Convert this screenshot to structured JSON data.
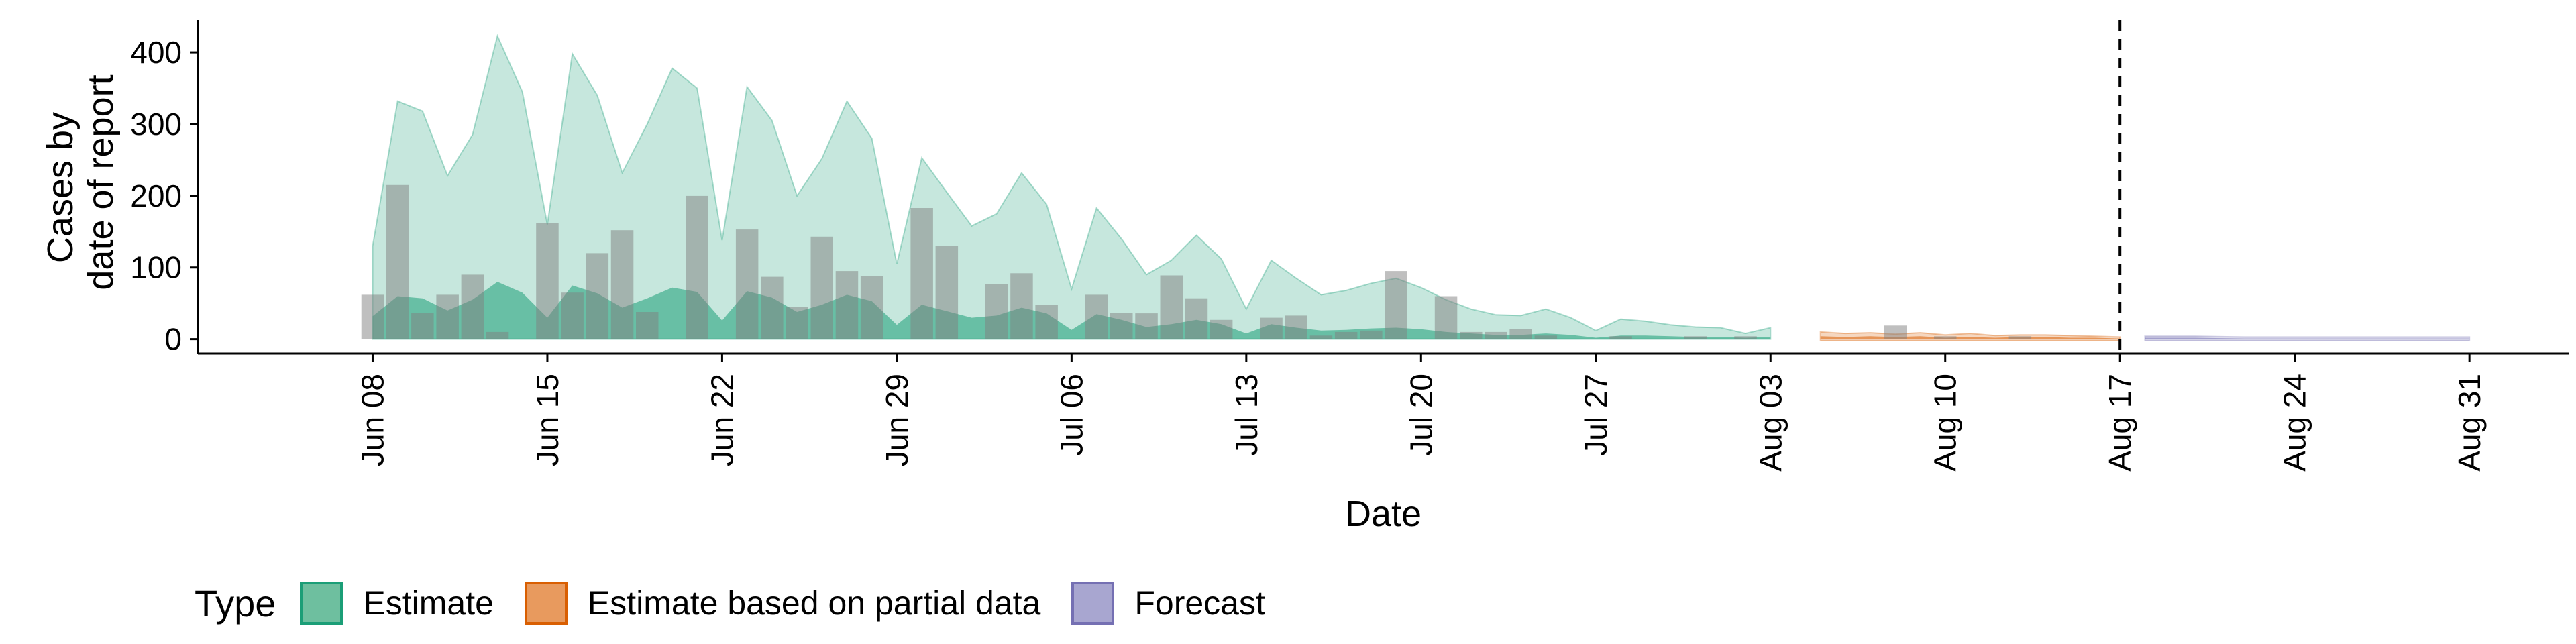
{
  "chart_data": {
    "type": "area",
    "xlabel": "Date",
    "ylabel_lines": [
      "Cases by",
      "date of report"
    ],
    "x_ticks": [
      "Jun 08",
      "Jun 15",
      "Jun 22",
      "Jun 29",
      "Jul 06",
      "Jul 13",
      "Jul 20",
      "Jul 27",
      "Aug 03",
      "Aug 10",
      "Aug 17",
      "Aug 24",
      "Aug 31"
    ],
    "y_ticks": [
      0,
      100,
      200,
      300,
      400
    ],
    "ylim": [
      -20,
      445
    ],
    "x_start": "2020-06-01",
    "x_end": "2020-09-04",
    "vline_date": "2020-08-17",
    "grid": false,
    "legend_position": "bottom",
    "legend": {
      "title": "Type",
      "items": [
        {
          "label": "Estimate",
          "fill": "#6ebf9f",
          "stroke": "#1b9e77"
        },
        {
          "label": "Estimate based on partial data",
          "fill": "#e89a5e",
          "stroke": "#d95f02"
        },
        {
          "label": "Forecast",
          "fill": "#a8a6d0",
          "stroke": "#7570b3"
        }
      ]
    },
    "colors": {
      "estimate_fill": "#1b9e77",
      "partial_fill": "#d95f02",
      "forecast_fill": "#7570b3",
      "observed_bar": "#808080",
      "vline": "#000000"
    },
    "observed_cases": [
      {
        "x": "2020-06-08",
        "y": 62
      },
      {
        "x": "2020-06-09",
        "y": 215
      },
      {
        "x": "2020-06-10",
        "y": 37
      },
      {
        "x": "2020-06-11",
        "y": 62
      },
      {
        "x": "2020-06-12",
        "y": 90
      },
      {
        "x": "2020-06-13",
        "y": 10
      },
      {
        "x": "2020-06-15",
        "y": 162
      },
      {
        "x": "2020-06-16",
        "y": 65
      },
      {
        "x": "2020-06-17",
        "y": 120
      },
      {
        "x": "2020-06-18",
        "y": 152
      },
      {
        "x": "2020-06-19",
        "y": 38
      },
      {
        "x": "2020-06-21",
        "y": 200
      },
      {
        "x": "2020-06-23",
        "y": 153
      },
      {
        "x": "2020-06-24",
        "y": 87
      },
      {
        "x": "2020-06-25",
        "y": 45
      },
      {
        "x": "2020-06-26",
        "y": 143
      },
      {
        "x": "2020-06-27",
        "y": 95
      },
      {
        "x": "2020-06-28",
        "y": 88
      },
      {
        "x": "2020-06-30",
        "y": 183
      },
      {
        "x": "2020-07-01",
        "y": 130
      },
      {
        "x": "2020-07-03",
        "y": 77
      },
      {
        "x": "2020-07-04",
        "y": 92
      },
      {
        "x": "2020-07-05",
        "y": 48
      },
      {
        "x": "2020-07-07",
        "y": 62
      },
      {
        "x": "2020-07-08",
        "y": 37
      },
      {
        "x": "2020-07-09",
        "y": 36
      },
      {
        "x": "2020-07-10",
        "y": 89
      },
      {
        "x": "2020-07-11",
        "y": 57
      },
      {
        "x": "2020-07-12",
        "y": 27
      },
      {
        "x": "2020-07-14",
        "y": 30
      },
      {
        "x": "2020-07-15",
        "y": 33
      },
      {
        "x": "2020-07-16",
        "y": 5
      },
      {
        "x": "2020-07-17",
        "y": 10
      },
      {
        "x": "2020-07-18",
        "y": 12
      },
      {
        "x": "2020-07-19",
        "y": 95
      },
      {
        "x": "2020-07-21",
        "y": 60
      },
      {
        "x": "2020-07-22",
        "y": 10
      },
      {
        "x": "2020-07-23",
        "y": 10
      },
      {
        "x": "2020-07-24",
        "y": 14
      },
      {
        "x": "2020-07-25",
        "y": 5
      },
      {
        "x": "2020-07-28",
        "y": 4
      },
      {
        "x": "2020-07-31",
        "y": 4
      },
      {
        "x": "2020-08-02",
        "y": 4
      },
      {
        "x": "2020-08-08",
        "y": 19
      },
      {
        "x": "2020-08-10",
        "y": 4
      },
      {
        "x": "2020-08-13",
        "y": 4
      }
    ],
    "series": [
      {
        "type_label": "Estimate",
        "outer_band": [
          {
            "x": "2020-06-08",
            "lo": 0,
            "hi": 130
          },
          {
            "x": "2020-06-09",
            "lo": 0,
            "hi": 332
          },
          {
            "x": "2020-06-10",
            "lo": 0,
            "hi": 318
          },
          {
            "x": "2020-06-11",
            "lo": 0,
            "hi": 228
          },
          {
            "x": "2020-06-12",
            "lo": 0,
            "hi": 285
          },
          {
            "x": "2020-06-13",
            "lo": 0,
            "hi": 423
          },
          {
            "x": "2020-06-14",
            "lo": 0,
            "hi": 345
          },
          {
            "x": "2020-06-15",
            "lo": 0,
            "hi": 160
          },
          {
            "x": "2020-06-16",
            "lo": 0,
            "hi": 398
          },
          {
            "x": "2020-06-17",
            "lo": 0,
            "hi": 340
          },
          {
            "x": "2020-06-18",
            "lo": 0,
            "hi": 232
          },
          {
            "x": "2020-06-19",
            "lo": 0,
            "hi": 300
          },
          {
            "x": "2020-06-20",
            "lo": 0,
            "hi": 378
          },
          {
            "x": "2020-06-21",
            "lo": 0,
            "hi": 350
          },
          {
            "x": "2020-06-22",
            "lo": 0,
            "hi": 138
          },
          {
            "x": "2020-06-23",
            "lo": 0,
            "hi": 352
          },
          {
            "x": "2020-06-24",
            "lo": 0,
            "hi": 305
          },
          {
            "x": "2020-06-25",
            "lo": 0,
            "hi": 200
          },
          {
            "x": "2020-06-26",
            "lo": 0,
            "hi": 252
          },
          {
            "x": "2020-06-27",
            "lo": 0,
            "hi": 332
          },
          {
            "x": "2020-06-28",
            "lo": 0,
            "hi": 280
          },
          {
            "x": "2020-06-29",
            "lo": 0,
            "hi": 105
          },
          {
            "x": "2020-06-30",
            "lo": 0,
            "hi": 253
          },
          {
            "x": "2020-07-01",
            "lo": 0,
            "hi": 205
          },
          {
            "x": "2020-07-02",
            "lo": 0,
            "hi": 158
          },
          {
            "x": "2020-07-03",
            "lo": 0,
            "hi": 175
          },
          {
            "x": "2020-07-04",
            "lo": 0,
            "hi": 232
          },
          {
            "x": "2020-07-05",
            "lo": 0,
            "hi": 188
          },
          {
            "x": "2020-07-06",
            "lo": 0,
            "hi": 70
          },
          {
            "x": "2020-07-07",
            "lo": 0,
            "hi": 183
          },
          {
            "x": "2020-07-08",
            "lo": 0,
            "hi": 140
          },
          {
            "x": "2020-07-09",
            "lo": 0,
            "hi": 90
          },
          {
            "x": "2020-07-10",
            "lo": 0,
            "hi": 110
          },
          {
            "x": "2020-07-11",
            "lo": 0,
            "hi": 145
          },
          {
            "x": "2020-07-12",
            "lo": 0,
            "hi": 112
          },
          {
            "x": "2020-07-13",
            "lo": 0,
            "hi": 42
          },
          {
            "x": "2020-07-14",
            "lo": 0,
            "hi": 110
          },
          {
            "x": "2020-07-15",
            "lo": 0,
            "hi": 85
          },
          {
            "x": "2020-07-16",
            "lo": 0,
            "hi": 62
          },
          {
            "x": "2020-07-17",
            "lo": 0,
            "hi": 68
          },
          {
            "x": "2020-07-18",
            "lo": 0,
            "hi": 78
          },
          {
            "x": "2020-07-19",
            "lo": 0,
            "hi": 85
          },
          {
            "x": "2020-07-20",
            "lo": 0,
            "hi": 72
          },
          {
            "x": "2020-07-21",
            "lo": 0,
            "hi": 55
          },
          {
            "x": "2020-07-22",
            "lo": 0,
            "hi": 42
          },
          {
            "x": "2020-07-23",
            "lo": 0,
            "hi": 34
          },
          {
            "x": "2020-07-24",
            "lo": 0,
            "hi": 33
          },
          {
            "x": "2020-07-25",
            "lo": 0,
            "hi": 42
          },
          {
            "x": "2020-07-26",
            "lo": 0,
            "hi": 30
          },
          {
            "x": "2020-07-27",
            "lo": 0,
            "hi": 12
          },
          {
            "x": "2020-07-28",
            "lo": 0,
            "hi": 28
          },
          {
            "x": "2020-07-29",
            "lo": 0,
            "hi": 25
          },
          {
            "x": "2020-07-30",
            "lo": 0,
            "hi": 20
          },
          {
            "x": "2020-07-31",
            "lo": 0,
            "hi": 17
          },
          {
            "x": "2020-08-01",
            "lo": 0,
            "hi": 16
          },
          {
            "x": "2020-08-02",
            "lo": 0,
            "hi": 8
          },
          {
            "x": "2020-08-03",
            "lo": 0,
            "hi": 16
          }
        ],
        "inner_band": [
          {
            "x": "2020-06-08",
            "lo": 0,
            "hi": 32
          },
          {
            "x": "2020-06-09",
            "lo": 0,
            "hi": 60
          },
          {
            "x": "2020-06-10",
            "lo": 0,
            "hi": 57
          },
          {
            "x": "2020-06-11",
            "lo": 0,
            "hi": 40
          },
          {
            "x": "2020-06-12",
            "lo": 0,
            "hi": 55
          },
          {
            "x": "2020-06-13",
            "lo": 0,
            "hi": 80
          },
          {
            "x": "2020-06-14",
            "lo": 0,
            "hi": 65
          },
          {
            "x": "2020-06-15",
            "lo": 0,
            "hi": 30
          },
          {
            "x": "2020-06-16",
            "lo": 0,
            "hi": 75
          },
          {
            "x": "2020-06-17",
            "lo": 0,
            "hi": 64
          },
          {
            "x": "2020-06-18",
            "lo": 0,
            "hi": 44
          },
          {
            "x": "2020-06-19",
            "lo": 0,
            "hi": 57
          },
          {
            "x": "2020-06-20",
            "lo": 0,
            "hi": 72
          },
          {
            "x": "2020-06-21",
            "lo": 0,
            "hi": 66
          },
          {
            "x": "2020-06-22",
            "lo": 0,
            "hi": 26
          },
          {
            "x": "2020-06-23",
            "lo": 0,
            "hi": 67
          },
          {
            "x": "2020-06-24",
            "lo": 0,
            "hi": 58
          },
          {
            "x": "2020-06-25",
            "lo": 0,
            "hi": 38
          },
          {
            "x": "2020-06-26",
            "lo": 0,
            "hi": 48
          },
          {
            "x": "2020-06-27",
            "lo": 0,
            "hi": 62
          },
          {
            "x": "2020-06-28",
            "lo": 0,
            "hi": 53
          },
          {
            "x": "2020-06-29",
            "lo": 0,
            "hi": 20
          },
          {
            "x": "2020-06-30",
            "lo": 0,
            "hi": 48
          },
          {
            "x": "2020-07-01",
            "lo": 0,
            "hi": 39
          },
          {
            "x": "2020-07-02",
            "lo": 0,
            "hi": 30
          },
          {
            "x": "2020-07-03",
            "lo": 0,
            "hi": 33
          },
          {
            "x": "2020-07-04",
            "lo": 0,
            "hi": 44
          },
          {
            "x": "2020-07-05",
            "lo": 0,
            "hi": 36
          },
          {
            "x": "2020-07-06",
            "lo": 0,
            "hi": 13
          },
          {
            "x": "2020-07-07",
            "lo": 0,
            "hi": 35
          },
          {
            "x": "2020-07-08",
            "lo": 0,
            "hi": 27
          },
          {
            "x": "2020-07-09",
            "lo": 0,
            "hi": 17
          },
          {
            "x": "2020-07-10",
            "lo": 0,
            "hi": 21
          },
          {
            "x": "2020-07-11",
            "lo": 0,
            "hi": 27
          },
          {
            "x": "2020-07-12",
            "lo": 0,
            "hi": 21
          },
          {
            "x": "2020-07-13",
            "lo": 0,
            "hi": 8
          },
          {
            "x": "2020-07-14",
            "lo": 0,
            "hi": 21
          },
          {
            "x": "2020-07-15",
            "lo": 0,
            "hi": 16
          },
          {
            "x": "2020-07-16",
            "lo": 0,
            "hi": 12
          },
          {
            "x": "2020-07-17",
            "lo": 0,
            "hi": 13
          },
          {
            "x": "2020-07-18",
            "lo": 0,
            "hi": 15
          },
          {
            "x": "2020-07-19",
            "lo": 0,
            "hi": 16
          },
          {
            "x": "2020-07-20",
            "lo": 0,
            "hi": 14
          },
          {
            "x": "2020-07-21",
            "lo": 0,
            "hi": 10
          },
          {
            "x": "2020-07-22",
            "lo": 0,
            "hi": 8
          },
          {
            "x": "2020-07-23",
            "lo": 0,
            "hi": 6
          },
          {
            "x": "2020-07-24",
            "lo": 0,
            "hi": 6
          },
          {
            "x": "2020-07-25",
            "lo": 0,
            "hi": 8
          },
          {
            "x": "2020-07-26",
            "lo": 0,
            "hi": 6
          },
          {
            "x": "2020-07-27",
            "lo": 0,
            "hi": 2
          },
          {
            "x": "2020-07-28",
            "lo": 0,
            "hi": 5
          },
          {
            "x": "2020-07-29",
            "lo": 0,
            "hi": 5
          },
          {
            "x": "2020-07-30",
            "lo": 0,
            "hi": 4
          },
          {
            "x": "2020-07-31",
            "lo": 0,
            "hi": 3
          },
          {
            "x": "2020-08-01",
            "lo": 0,
            "hi": 3
          },
          {
            "x": "2020-08-02",
            "lo": 0,
            "hi": 2
          },
          {
            "x": "2020-08-03",
            "lo": 0,
            "hi": 3
          }
        ]
      },
      {
        "type_label": "Estimate based on partial data",
        "outer_band": [
          {
            "x": "2020-08-05",
            "lo": -2,
            "hi": 10
          },
          {
            "x": "2020-08-06",
            "lo": -2,
            "hi": 8
          },
          {
            "x": "2020-08-07",
            "lo": -2,
            "hi": 9
          },
          {
            "x": "2020-08-08",
            "lo": -2,
            "hi": 7
          },
          {
            "x": "2020-08-09",
            "lo": -2,
            "hi": 9
          },
          {
            "x": "2020-08-10",
            "lo": -2,
            "hi": 6
          },
          {
            "x": "2020-08-11",
            "lo": -2,
            "hi": 8
          },
          {
            "x": "2020-08-12",
            "lo": -2,
            "hi": 5
          },
          {
            "x": "2020-08-13",
            "lo": -2,
            "hi": 6
          },
          {
            "x": "2020-08-14",
            "lo": -2,
            "hi": 6
          },
          {
            "x": "2020-08-15",
            "lo": -2,
            "hi": 5
          },
          {
            "x": "2020-08-16",
            "lo": -2,
            "hi": 4
          },
          {
            "x": "2020-08-17",
            "lo": -2,
            "hi": 3
          }
        ],
        "inner_band": [
          {
            "x": "2020-08-05",
            "lo": 0,
            "hi": 4
          },
          {
            "x": "2020-08-06",
            "lo": 0,
            "hi": 3
          },
          {
            "x": "2020-08-07",
            "lo": 0,
            "hi": 4
          },
          {
            "x": "2020-08-08",
            "lo": 0,
            "hi": 3
          },
          {
            "x": "2020-08-09",
            "lo": 0,
            "hi": 4
          },
          {
            "x": "2020-08-10",
            "lo": 0,
            "hi": 2
          },
          {
            "x": "2020-08-11",
            "lo": 0,
            "hi": 3
          },
          {
            "x": "2020-08-12",
            "lo": 0,
            "hi": 2
          },
          {
            "x": "2020-08-13",
            "lo": 0,
            "hi": 3
          },
          {
            "x": "2020-08-14",
            "lo": 0,
            "hi": 3
          },
          {
            "x": "2020-08-15",
            "lo": 0,
            "hi": 2
          },
          {
            "x": "2020-08-16",
            "lo": 0,
            "hi": 2
          },
          {
            "x": "2020-08-17",
            "lo": 0,
            "hi": 1
          }
        ]
      },
      {
        "type_label": "Forecast",
        "outer_band": [
          {
            "x": "2020-08-18",
            "lo": -2,
            "hi": 4
          },
          {
            "x": "2020-08-20",
            "lo": -2,
            "hi": 4
          },
          {
            "x": "2020-08-22",
            "lo": -2,
            "hi": 3
          },
          {
            "x": "2020-08-24",
            "lo": -2,
            "hi": 3
          },
          {
            "x": "2020-08-26",
            "lo": -2,
            "hi": 3
          },
          {
            "x": "2020-08-28",
            "lo": -2,
            "hi": 3
          },
          {
            "x": "2020-08-30",
            "lo": -2,
            "hi": 3
          },
          {
            "x": "2020-08-31",
            "lo": -2,
            "hi": 3
          }
        ],
        "inner_band": [
          {
            "x": "2020-08-18",
            "lo": 0,
            "hi": 2
          },
          {
            "x": "2020-08-20",
            "lo": 0,
            "hi": 2
          },
          {
            "x": "2020-08-22",
            "lo": 0,
            "hi": 1
          },
          {
            "x": "2020-08-24",
            "lo": 0,
            "hi": 1
          },
          {
            "x": "2020-08-26",
            "lo": 0,
            "hi": 1
          },
          {
            "x": "2020-08-28",
            "lo": 0,
            "hi": 1
          },
          {
            "x": "2020-08-30",
            "lo": 0,
            "hi": 1
          },
          {
            "x": "2020-08-31",
            "lo": 0,
            "hi": 1
          }
        ]
      }
    ]
  }
}
